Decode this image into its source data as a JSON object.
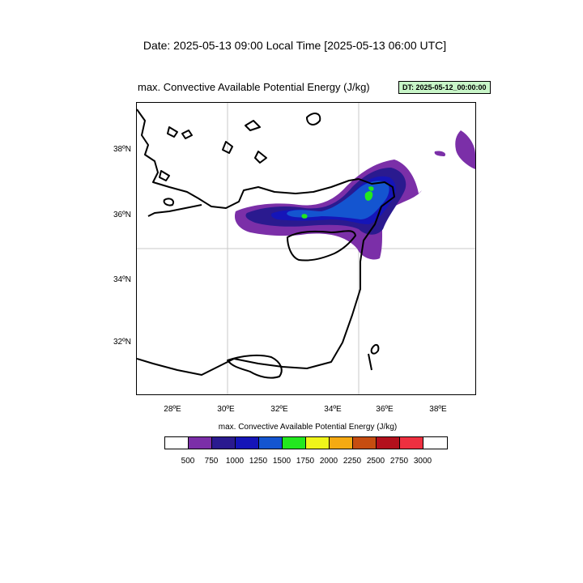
{
  "header": {
    "date_title": "Date: 2025-05-13  09:00 Local Time [2025-05-13  06:00 UTC]",
    "plot_title": "max. Convective Available Potential Energy   (J/kg)",
    "dt_badge": "DT: 2025-05-12_00:00:00"
  },
  "map": {
    "lon_range": [
      26.5,
      39.5
    ],
    "lat_range": [
      30.5,
      39.5
    ],
    "x_ticks": [
      "28ºE",
      "30ºE",
      "32ºE",
      "34ºE",
      "36ºE",
      "38ºE"
    ],
    "y_ticks": [
      "38ºN",
      "36ºN",
      "34ºN",
      "32ºN"
    ],
    "gridlines": [
      "30ºE",
      "35ºE",
      "35ºN"
    ],
    "coastline_color": "#000000",
    "field": "max. Convective Available Potential Energy",
    "max_region": "near 35.5ºE, 36.5ºN",
    "max_level": "1750 J/kg"
  },
  "colorbar": {
    "title": "max. Convective Available Potential Energy  (J/kg)",
    "labels": [
      "500",
      "750",
      "1000",
      "1250",
      "1500",
      "1750",
      "2000",
      "2250",
      "2500",
      "2750",
      "3000"
    ],
    "colors": [
      "#ffffff",
      "#7b2fa8",
      "#2a1a8f",
      "#1515b8",
      "#1455d0",
      "#22e81f",
      "#f0f51a",
      "#f5aa12",
      "#c64d10",
      "#b3101c",
      "#ee3040",
      "#ffffff"
    ]
  }
}
